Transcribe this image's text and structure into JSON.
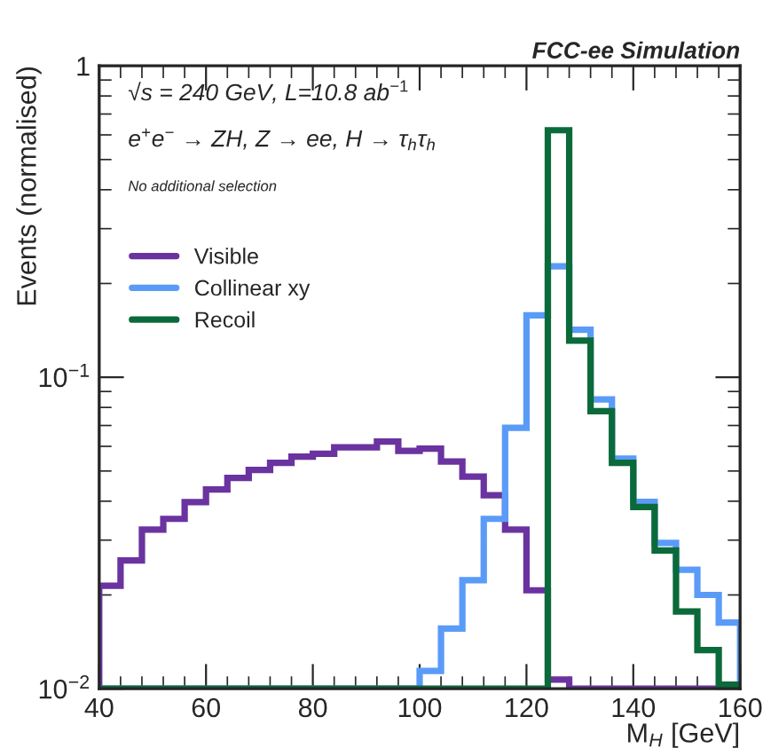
{
  "chart_data": {
    "type": "histogram",
    "title": "FCC-ee Simulation",
    "xlabel": "M$_{H}$ [GeV]",
    "ylabel": "Events (normalised)",
    "annotations": [
      "√s = 240 GeV, L=10.8 ab$^{−1}$",
      "e$^{+}$e$^{−}$ → ZH, Z → ee, H → τ$_{h}$τ$_{h}$",
      "No additional selection"
    ],
    "bins": [
      40,
      44,
      48,
      52,
      56,
      60,
      64,
      68,
      72,
      76,
      80,
      84,
      88,
      92,
      96,
      100,
      104,
      108,
      112,
      116,
      120,
      124,
      128,
      132,
      136,
      140,
      144,
      148,
      152,
      156,
      160
    ],
    "series": [
      {
        "name": "Visible",
        "color": "#6a33a0",
        "values": [
          0.0214,
          0.0258,
          0.0324,
          0.0351,
          0.0397,
          0.0436,
          0.0475,
          0.0504,
          0.0531,
          0.0556,
          0.0568,
          0.0596,
          0.0596,
          0.0622,
          0.058,
          0.059,
          0.0536,
          0.048,
          0.0418,
          0.0324,
          0.0207,
          0.0107,
          null,
          null,
          null,
          null,
          null,
          null,
          null,
          null
        ]
      },
      {
        "name": "Collinear xy",
        "color": "#5b9bf8",
        "values": [
          null,
          null,
          null,
          null,
          null,
          null,
          null,
          null,
          null,
          null,
          null,
          null,
          null,
          null,
          null,
          0.0114,
          0.0156,
          0.0223,
          0.0351,
          0.0688,
          0.158,
          0.227,
          0.142,
          0.0849,
          0.0548,
          0.0398,
          0.0294,
          0.0241,
          0.02,
          0.0163
        ]
      },
      {
        "name": "Recoil",
        "color": "#0b6a3a",
        "values": [
          null,
          null,
          null,
          null,
          null,
          null,
          null,
          null,
          null,
          null,
          null,
          null,
          null,
          null,
          null,
          null,
          null,
          null,
          null,
          null,
          null,
          0.621,
          0.131,
          0.0778,
          0.0531,
          0.0383,
          0.0278,
          0.0177,
          0.0133,
          0.0103
        ]
      }
    ],
    "log": "y",
    "xlim": [
      40,
      160
    ],
    "xticks": [
      40,
      60,
      80,
      100,
      120,
      140,
      160
    ],
    "ylim": [
      0.01,
      1
    ],
    "yticks": [
      {
        "value": 0.01,
        "label": "10$^{−2}$"
      },
      {
        "value": 0.1,
        "label": "10$^{−1}$"
      },
      1
    ],
    "grid": false,
    "legend": "top left",
    "line_style": "solid"
  }
}
